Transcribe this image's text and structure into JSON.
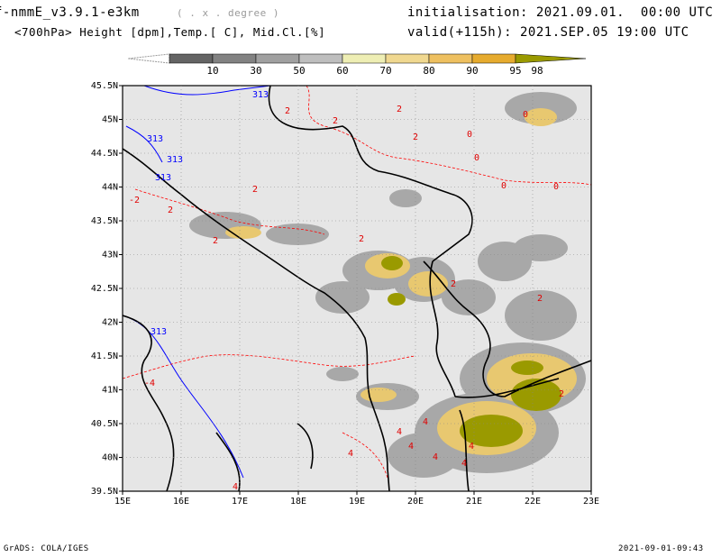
{
  "header": {
    "model": "f-nmmE_v3.9.1-e3km",
    "units_hint": "( . x . degree )",
    "field": "<700hPa> Height [dpm],Temp.[ C], Mid.Cl.[%]",
    "init": "initialisation: 2021.09.01.  00:00 UTC",
    "valid": "valid(+115h): 2021.SEP.05 19:00 UTC"
  },
  "colorbar": {
    "labels": [
      "10",
      "30",
      "50",
      "60",
      "70",
      "80",
      "90",
      "95",
      "98"
    ],
    "colors": [
      "#646464",
      "#828282",
      "#a0a0a0",
      "#bebebe",
      "#eeeeb4",
      "#f0d890",
      "#eec060",
      "#e6ab2e",
      "#9a9a00"
    ]
  },
  "map": {
    "lat_labels": [
      "45.5N",
      "45N",
      "44.5N",
      "44N",
      "43.5N",
      "43N",
      "42.5N",
      "42N",
      "41.5N",
      "41N",
      "40.5N",
      "40N",
      "39.5N"
    ],
    "lon_labels": [
      "15E",
      "16E",
      "17E",
      "18E",
      "19E",
      "20E",
      "21E",
      "22E",
      "23E"
    ],
    "height_labels": [
      "313",
      "313",
      "313",
      "313",
      "313"
    ],
    "temp_labels": [
      "2",
      "2",
      "2",
      "2",
      "2",
      "2",
      "2",
      "2",
      "2",
      "2",
      "2",
      "0",
      "0",
      "0",
      "0",
      "0",
      "-2",
      "-4",
      "4",
      "4",
      "4",
      "4",
      "4",
      "4",
      "4",
      "4"
    ],
    "colors": {
      "land": "#e6e6e6",
      "border": "#000000",
      "height_contour": "#0000ff",
      "temp_contour": "#ff0000"
    }
  },
  "footer": {
    "left": "GrADS: COLA/IGES",
    "right": "2021-09-01-09:43"
  }
}
